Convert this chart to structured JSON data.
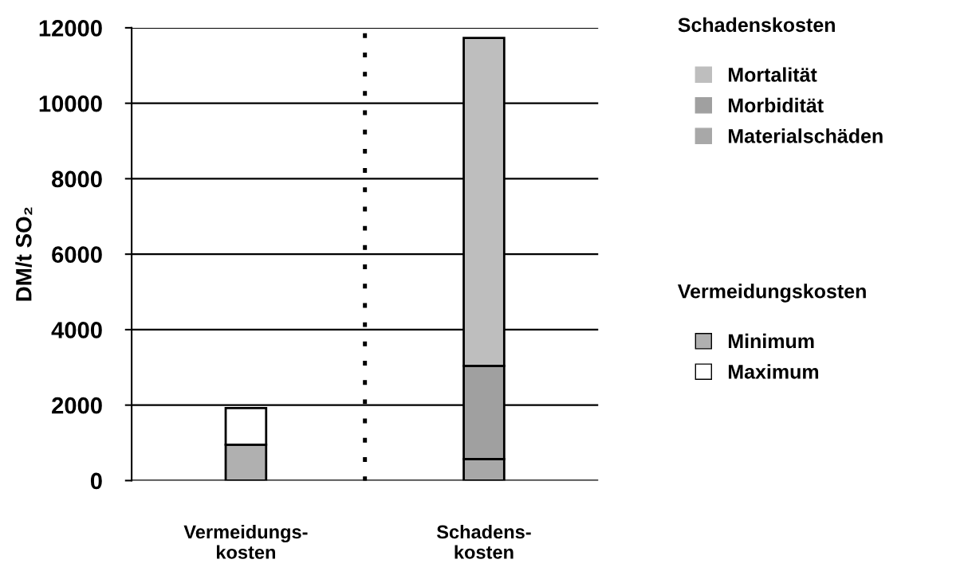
{
  "chart_data": {
    "type": "bar",
    "stacked": true,
    "ylabel": "DM/t SO₂",
    "categories": [
      "Vermeidungs-\nkosten",
      "Schadens-\nkosten"
    ],
    "series": [
      {
        "name": "Materialschäden",
        "color": "#a8a8a8",
        "values": [
          null,
          570
        ]
      },
      {
        "name": "Morbidität",
        "color": "#a0a0a0",
        "values": [
          null,
          2470
        ]
      },
      {
        "name": "Mortalität",
        "color": "#bebebe",
        "values": [
          null,
          8690
        ]
      },
      {
        "name": "Minimum",
        "color": "#b0b0b0",
        "values": [
          950,
          null
        ]
      },
      {
        "name": "Maximum",
        "color": "#ffffff",
        "values": [
          970,
          null
        ]
      }
    ],
    "annotations": [
      "Schadenskosten",
      "Vermeidungskosten"
    ],
    "ylim": [
      0,
      12000
    ],
    "yticks": [
      0,
      2000,
      4000,
      6000,
      8000,
      10000,
      12000
    ],
    "grid": "y",
    "legend": "right"
  }
}
